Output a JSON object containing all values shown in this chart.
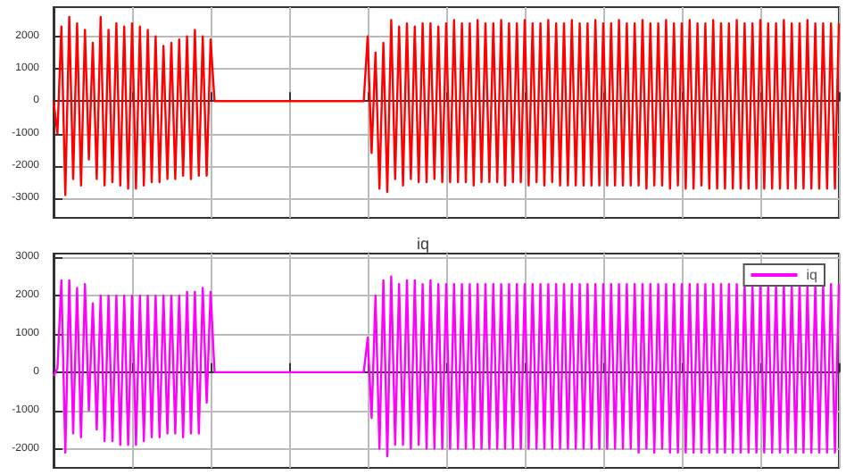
{
  "chart_data": [
    {
      "type": "line",
      "categories": [
        null,
        null,
        null,
        null,
        null,
        null,
        null,
        null,
        null,
        null,
        null,
        null,
        null,
        null,
        null,
        null,
        null,
        null,
        null,
        null,
        null,
        null,
        null,
        null,
        null,
        null,
        null,
        null,
        null,
        null,
        null,
        null,
        null,
        null,
        null,
        null,
        null,
        null,
        null,
        null,
        null,
        null,
        null,
        null,
        null,
        null,
        null,
        null,
        null,
        null,
        null,
        null,
        null,
        null,
        null,
        null,
        null,
        null,
        null,
        null,
        null,
        null,
        null,
        null,
        null,
        null,
        null,
        null,
        null,
        null,
        null,
        null,
        null,
        null,
        null,
        null,
        null,
        null,
        null,
        null,
        null,
        null,
        null,
        null,
        null,
        null,
        null,
        null,
        null,
        null,
        null,
        null,
        null,
        null,
        null,
        null,
        null,
        null,
        null,
        null,
        null,
        null,
        null,
        null,
        null,
        null,
        null,
        null,
        null,
        null,
        null,
        null,
        null,
        null,
        null,
        null,
        null,
        null,
        null,
        null,
        null,
        null,
        null,
        null,
        null,
        null,
        null,
        null,
        null,
        null,
        null,
        null,
        null,
        null,
        null,
        null,
        null,
        null,
        null,
        null,
        null,
        null,
        null,
        null,
        null,
        null,
        null,
        null,
        null,
        null,
        null,
        null,
        null,
        null,
        null,
        null,
        null,
        null,
        null,
        null,
        null,
        null,
        null,
        null,
        null,
        null,
        null,
        null,
        null,
        null,
        null,
        null,
        null,
        null,
        null,
        null,
        null,
        null,
        null,
        null,
        null,
        null,
        null,
        null,
        null,
        null,
        null,
        null,
        null,
        null,
        null,
        null,
        null,
        null,
        null,
        null,
        null,
        null,
        null,
        null,
        null
      ],
      "series": [
        {
          "color": "#ff0000",
          "values": [
            0,
            -1000,
            2300,
            -2900,
            2600,
            -2400,
            2400,
            -2600,
            2200,
            -1800,
            1800,
            -2400,
            2600,
            -2600,
            2200,
            -2500,
            2400,
            -2600,
            2300,
            -2700,
            2400,
            -2700,
            2300,
            -2600,
            2200,
            -2500,
            2000,
            -2500,
            1700,
            -2400,
            1800,
            -2400,
            1900,
            -2300,
            2000,
            -2400,
            2200,
            -2300,
            2000,
            -2300,
            1900,
            0,
            0,
            0,
            0,
            0,
            0,
            0,
            0,
            0,
            0,
            0,
            0,
            0,
            0,
            0,
            0,
            0,
            0,
            0,
            0,
            0,
            0,
            0,
            0,
            0,
            0,
            0,
            0,
            0,
            0,
            0,
            0,
            0,
            0,
            0,
            0,
            0,
            0,
            0,
            2000,
            -1600,
            1500,
            -2700,
            1800,
            -2800,
            2500,
            -2400,
            2300,
            -2600,
            2400,
            -2400,
            2300,
            -2500,
            2400,
            -2500,
            2400,
            -2400,
            2300,
            -2500,
            2400,
            -2500,
            2500,
            -2500,
            2400,
            -2500,
            2400,
            -2600,
            2500,
            -2500,
            2400,
            -2500,
            2400,
            -2500,
            2500,
            -2600,
            2400,
            -2500,
            2400,
            -2500,
            2500,
            -2600,
            2400,
            -2500,
            2400,
            -2600,
            2500,
            -2500,
            2400,
            -2600,
            2400,
            -2600,
            2500,
            -2600,
            2400,
            -2600,
            2400,
            -2600,
            2500,
            -2600,
            2400,
            -2600,
            2400,
            -2600,
            2500,
            -2600,
            2400,
            -2600,
            2400,
            -2600,
            2500,
            -2700,
            2400,
            -2600,
            2400,
            -2600,
            2500,
            -2700,
            2400,
            -2600,
            2400,
            -2700,
            2500,
            -2700,
            2400,
            -2600,
            2400,
            -2700,
            2500,
            -2700,
            2400,
            -2700,
            2400,
            -2700,
            2500,
            -2700,
            2400,
            -2700,
            2400,
            -2700,
            2500,
            -2700,
            2400,
            -2700,
            2400,
            -2700,
            2500,
            -2700,
            2400,
            -2700,
            2400,
            -2700,
            2500,
            -2700,
            2400,
            -2700,
            2400,
            -2700,
            2400,
            -2700,
            2400
          ]
        }
      ],
      "ylim": [
        -3600,
        2900
      ],
      "yticks": [
        -3000,
        -2000,
        -1000,
        0,
        1000,
        2000
      ],
      "tick_labels": "y",
      "grid": true,
      "marker": "none",
      "line_style": "solid"
    },
    {
      "type": "line",
      "title": "iq",
      "categories": [
        null,
        null,
        null,
        null,
        null,
        null,
        null,
        null,
        null,
        null,
        null,
        null,
        null,
        null,
        null,
        null,
        null,
        null,
        null,
        null,
        null,
        null,
        null,
        null,
        null,
        null,
        null,
        null,
        null,
        null,
        null,
        null,
        null,
        null,
        null,
        null,
        null,
        null,
        null,
        null,
        null,
        null,
        null,
        null,
        null,
        null,
        null,
        null,
        null,
        null,
        null,
        null,
        null,
        null,
        null,
        null,
        null,
        null,
        null,
        null,
        null,
        null,
        null,
        null,
        null,
        null,
        null,
        null,
        null,
        null,
        null,
        null,
        null,
        null,
        null,
        null,
        null,
        null,
        null,
        null,
        null,
        null,
        null,
        null,
        null,
        null,
        null,
        null,
        null,
        null,
        null,
        null,
        null,
        null,
        null,
        null,
        null,
        null,
        null,
        null,
        null,
        null,
        null,
        null,
        null,
        null,
        null,
        null,
        null,
        null,
        null,
        null,
        null,
        null,
        null,
        null,
        null,
        null,
        null,
        null,
        null,
        null,
        null,
        null,
        null,
        null,
        null,
        null,
        null,
        null,
        null,
        null,
        null,
        null,
        null,
        null,
        null,
        null,
        null,
        null,
        null,
        null,
        null,
        null,
        null,
        null,
        null,
        null,
        null,
        null,
        null,
        null,
        null,
        null,
        null,
        null,
        null,
        null,
        null,
        null,
        null,
        null,
        null,
        null,
        null,
        null,
        null,
        null,
        null,
        null,
        null,
        null,
        null,
        null,
        null,
        null,
        null,
        null,
        null,
        null,
        null,
        null,
        null,
        null,
        null,
        null,
        null,
        null,
        null,
        null,
        null,
        null,
        null,
        null,
        null,
        null,
        null,
        null,
        null,
        null,
        null
      ],
      "series": [
        {
          "name": "iq",
          "color": "#ff00ff",
          "values": [
            -100,
            100,
            2400,
            -2100,
            2400,
            -1600,
            2200,
            -1700,
            2300,
            -1000,
            1800,
            -1500,
            2000,
            -1800,
            2000,
            -1800,
            2000,
            -1900,
            2000,
            -1900,
            2000,
            -1900,
            2000,
            -1800,
            2000,
            -1700,
            2000,
            -1700,
            2000,
            -1600,
            2000,
            -1600,
            2000,
            -1700,
            2100,
            -1600,
            2100,
            -1600,
            2200,
            -800,
            2100,
            0,
            0,
            0,
            0,
            0,
            0,
            0,
            0,
            0,
            0,
            0,
            0,
            0,
            0,
            0,
            0,
            0,
            0,
            0,
            0,
            0,
            0,
            0,
            0,
            0,
            0,
            0,
            0,
            0,
            0,
            0,
            0,
            0,
            0,
            0,
            0,
            0,
            0,
            0,
            900,
            -1200,
            2000,
            -2000,
            2400,
            -2200,
            2500,
            -1900,
            2300,
            -1900,
            2400,
            -2000,
            2400,
            -1900,
            2300,
            -2000,
            2400,
            -2000,
            2300,
            -2000,
            2300,
            -2000,
            2300,
            -2000,
            2300,
            -2000,
            2300,
            -2000,
            2300,
            -2000,
            2300,
            -2000,
            2300,
            -2000,
            2300,
            -2000,
            2300,
            -2000,
            2300,
            -2000,
            2300,
            -2000,
            2300,
            -2000,
            2300,
            -2000,
            2300,
            -2000,
            2300,
            -2000,
            2300,
            -2000,
            2300,
            -2000,
            2300,
            -2000,
            2300,
            -2000,
            2300,
            -2000,
            2300,
            -2000,
            2300,
            -2000,
            2300,
            -2000,
            2300,
            -2000,
            2300,
            -2100,
            2300,
            -2000,
            2300,
            -2100,
            2300,
            -2000,
            2300,
            -2100,
            2300,
            -2100,
            2300,
            -2100,
            2300,
            -2100,
            2300,
            -2100,
            2300,
            -2100,
            2300,
            -2100,
            2300,
            -2100,
            2300,
            -2100,
            2300,
            -2100,
            2300,
            -2100,
            2300,
            -2100,
            2300,
            -2100,
            2300,
            -2100,
            2300,
            -2100,
            2300,
            -2100,
            2300,
            -2100,
            2300,
            -2100,
            2300,
            -2100,
            2300,
            -2100,
            2300,
            -2100,
            2300,
            -2100,
            2300
          ]
        }
      ],
      "ylim": [
        -2500,
        3100
      ],
      "yticks": [
        -2000,
        -1000,
        0,
        1000,
        2000,
        3000
      ],
      "tick_labels": "y",
      "grid": true,
      "legend": "top right",
      "marker": "none",
      "line_style": "solid"
    }
  ]
}
